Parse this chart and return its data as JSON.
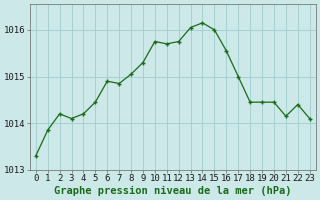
{
  "x": [
    0,
    1,
    2,
    3,
    4,
    5,
    6,
    7,
    8,
    9,
    10,
    11,
    12,
    13,
    14,
    15,
    16,
    17,
    18,
    19,
    20,
    21,
    22,
    23
  ],
  "y": [
    1013.3,
    1013.85,
    1014.2,
    1014.1,
    1014.2,
    1014.45,
    1014.9,
    1014.85,
    1015.05,
    1015.3,
    1015.75,
    1015.7,
    1015.75,
    1016.05,
    1016.15,
    1016.0,
    1015.55,
    1015.0,
    1014.45,
    1014.45,
    1014.45,
    1014.15,
    1014.4,
    1014.1
  ],
  "line_color": "#1a6b1a",
  "marker_color": "#1a6b1a",
  "bg_color": "#cce8e8",
  "grid_color": "#a0cccc",
  "title": "Graphe pression niveau de la mer (hPa)",
  "xlim": [
    -0.5,
    23.5
  ],
  "ylim": [
    1013.0,
    1016.55
  ],
  "yticks": [
    1013,
    1014,
    1015,
    1016
  ],
  "xtick_labels": [
    "0",
    "1",
    "2",
    "3",
    "4",
    "5",
    "6",
    "7",
    "8",
    "9",
    "10",
    "11",
    "12",
    "13",
    "14",
    "15",
    "16",
    "17",
    "18",
    "19",
    "20",
    "21",
    "22",
    "23"
  ],
  "title_fontsize": 7.5,
  "tick_fontsize": 6.5,
  "title_color": "#1a6b1a"
}
